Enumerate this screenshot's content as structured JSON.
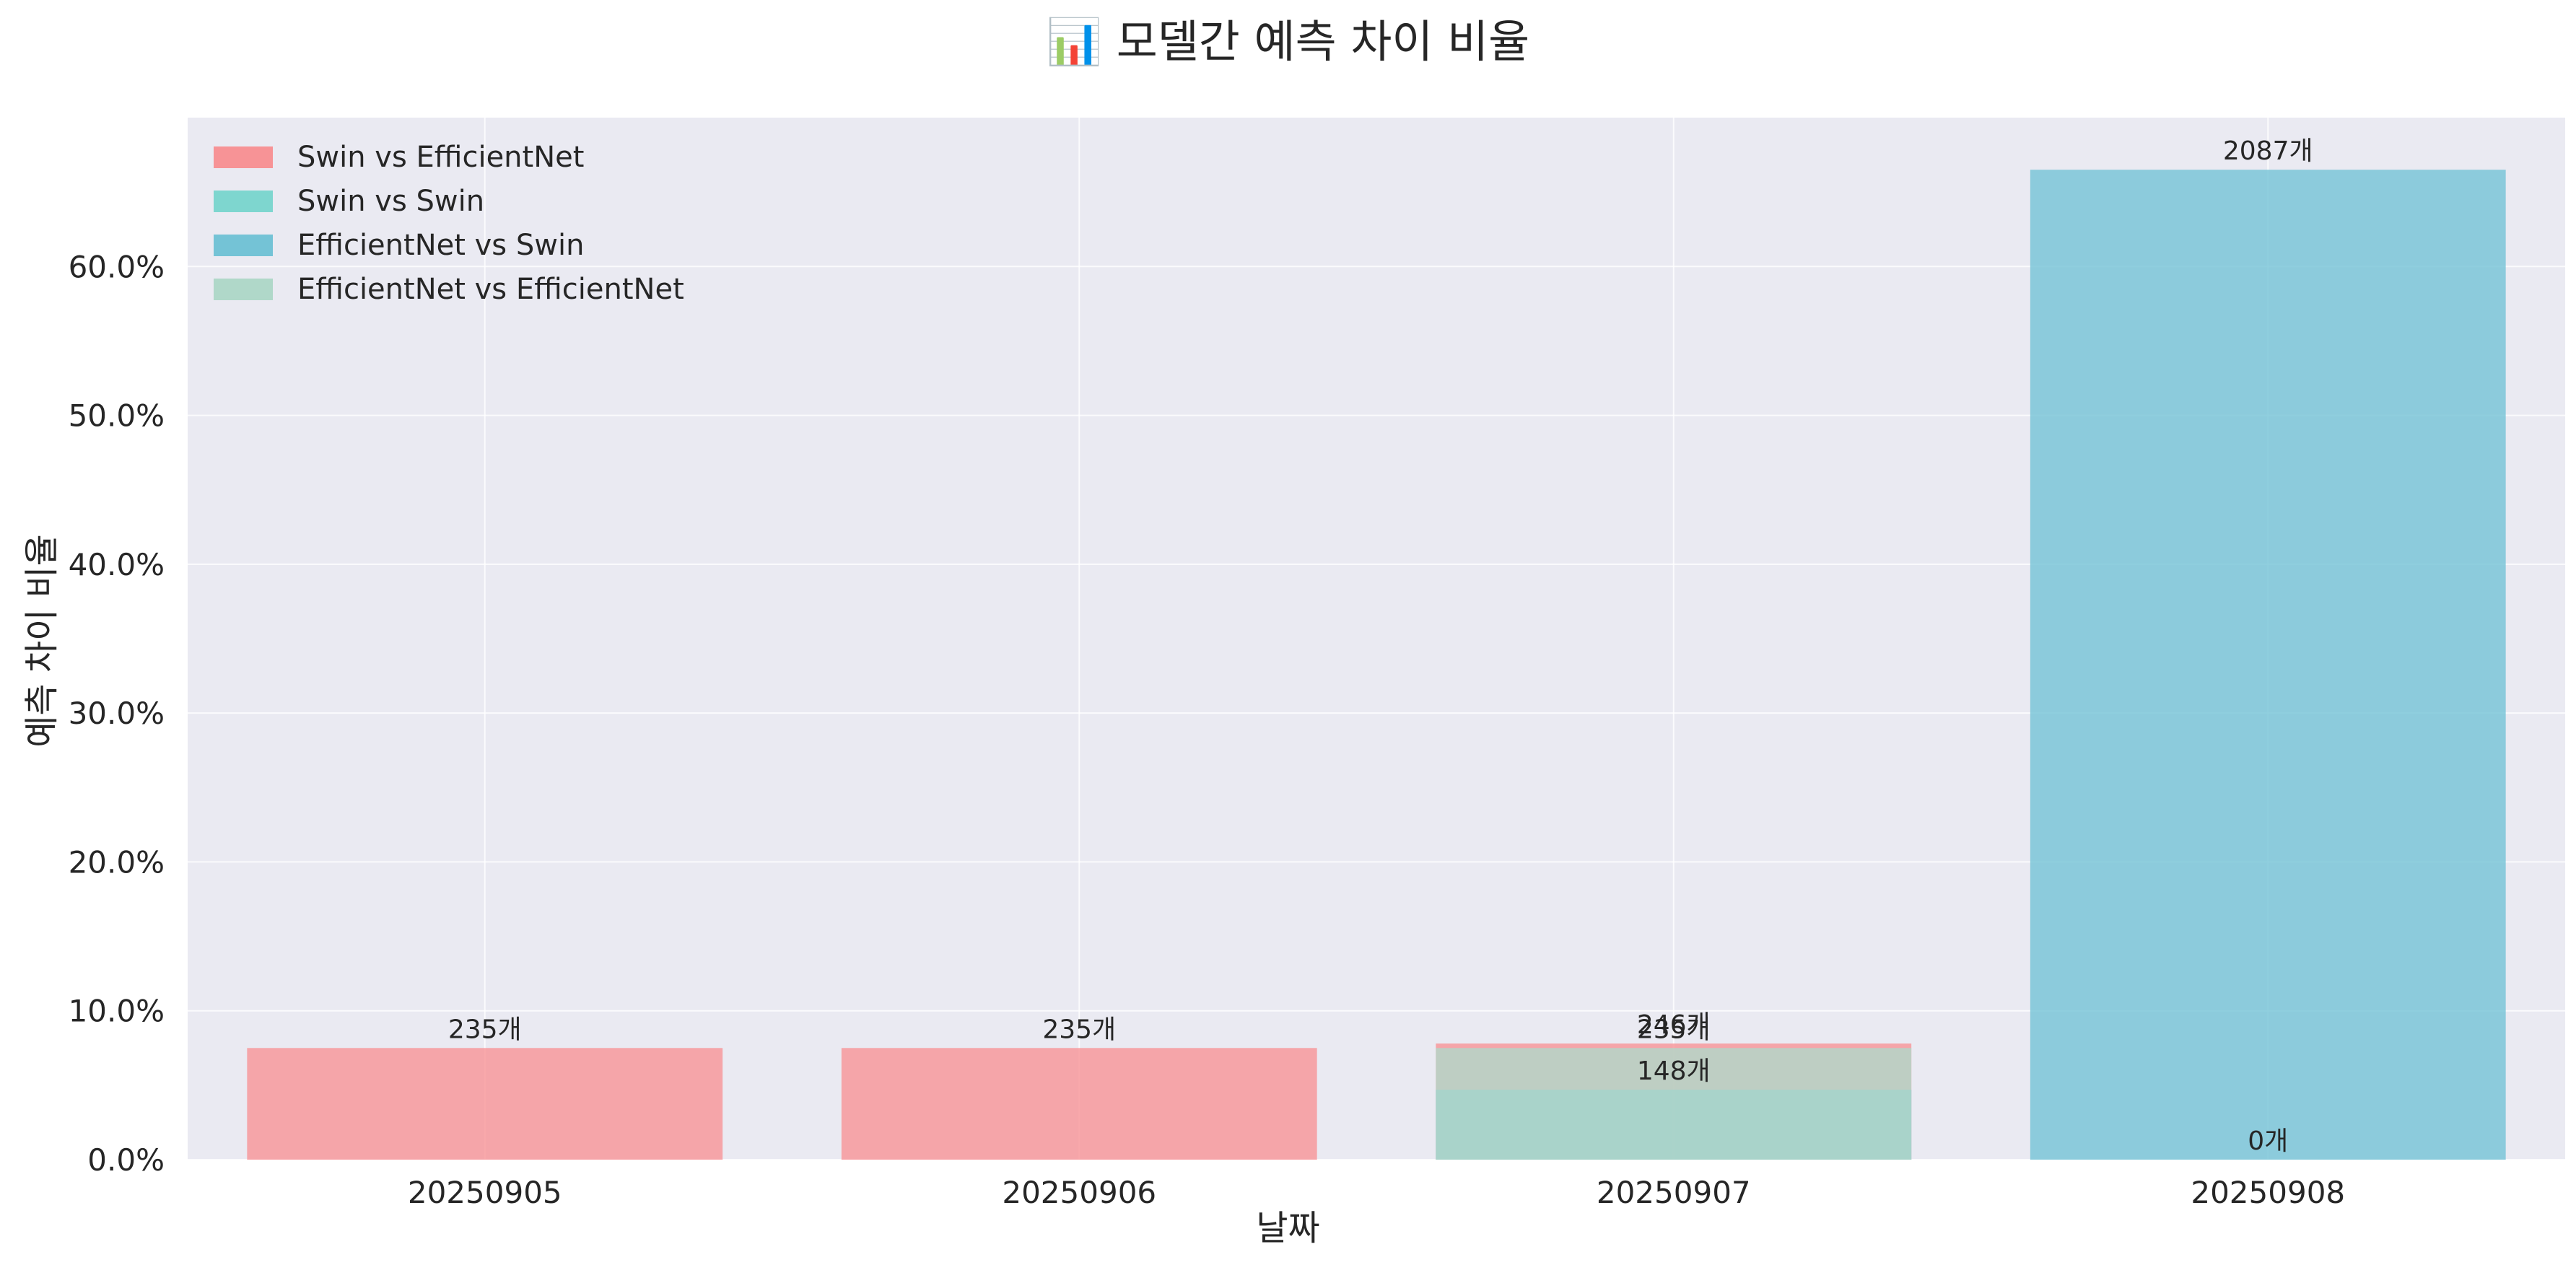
{
  "chart_data": {
    "type": "bar",
    "stacked": true,
    "title": "📊 모델간 예측 차이 비율",
    "xlabel": "날짜",
    "ylabel": "예측 차이 비율",
    "categories": [
      "20250905",
      "20250906",
      "20250907",
      "20250908"
    ],
    "ylim": [
      0,
      70
    ],
    "yticks": [
      0,
      10,
      20,
      30,
      40,
      50,
      60
    ],
    "ytick_labels": [
      "0.0%",
      "10.0%",
      "20.0%",
      "30.0%",
      "40.0%",
      "50.0%",
      "60.0%"
    ],
    "grid": true,
    "legend_position": "top-left",
    "series": [
      {
        "name": "Swin vs EfficientNet",
        "color": "#f79396",
        "values": [
          7.5,
          7.5,
          7.8,
          0
        ],
        "count_labels": [
          "235개",
          "235개",
          "246개",
          null
        ]
      },
      {
        "name": "Swin vs Swin",
        "color": "#7ed6cf",
        "values": [
          0,
          0,
          0,
          0
        ],
        "count_labels": [
          null,
          null,
          null,
          null
        ]
      },
      {
        "name": "EfficientNet vs Swin",
        "color": "#74c3d6",
        "values": [
          0,
          0,
          4.7,
          66.5
        ],
        "count_labels": [
          null,
          null,
          "148개",
          "2087개"
        ]
      },
      {
        "name": "EfficientNet vs EfficientNet",
        "color": "#b0d8c9",
        "values": [
          0,
          0,
          7.5,
          0
        ],
        "count_labels": [
          null,
          null,
          "235개",
          "0개"
        ]
      }
    ],
    "colors": {
      "plot_background": "#eaeaf2",
      "grid": "#ffffff",
      "bar_overlap": "#7eaabd",
      "bar_overlap_lower": "#5ab6c8"
    }
  }
}
